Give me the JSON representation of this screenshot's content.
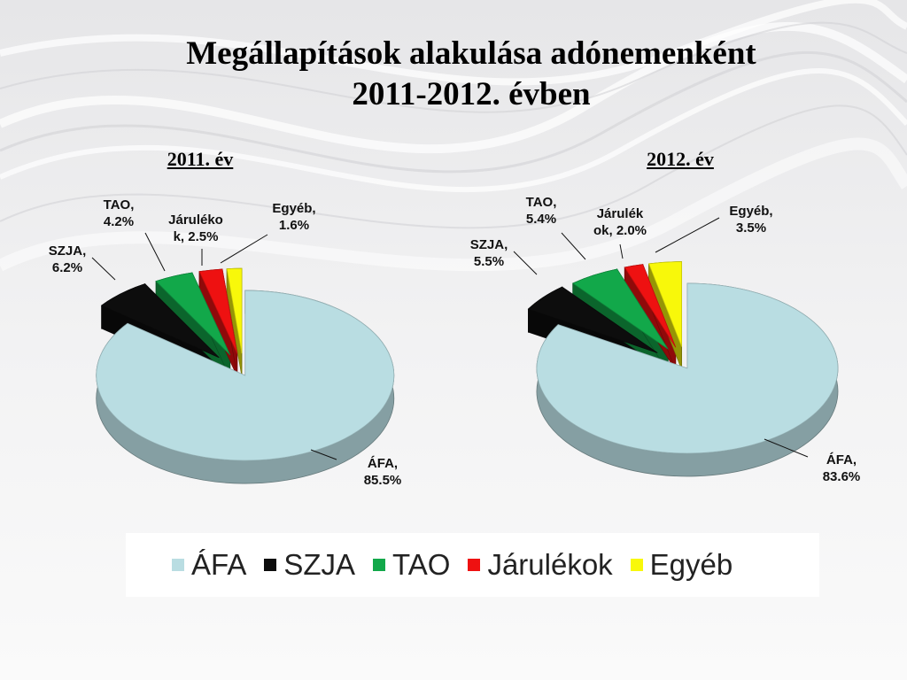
{
  "slide": {
    "title_line1": "Megállapítások alakulása adónemenként",
    "title_line2": "2011-2012. évben"
  },
  "colors": {
    "ÁFA": "#b9dde2",
    "SZJA": "#0d0d0d",
    "TAO": "#12a84a",
    "Járulékok": "#ee1111",
    "Egyéb": "#f8f80a"
  },
  "legend": [
    "ÁFA",
    "SZJA",
    "TAO",
    "Járulékok",
    "Egyéb"
  ],
  "chart_data": [
    {
      "type": "pie",
      "title": "2011. év",
      "style": "3d-exploded",
      "categories": [
        "ÁFA",
        "SZJA",
        "TAO",
        "Járulékok",
        "Egyéb"
      ],
      "values": [
        85.5,
        6.2,
        4.2,
        2.5,
        1.6
      ],
      "unit": "%",
      "data_labels": [
        [
          "ÁFA,",
          "85.5%"
        ],
        [
          "SZJA,",
          "6.2%"
        ],
        [
          "TAO,",
          "4.2%"
        ],
        [
          "Járuléko",
          "k, 2.5%"
        ],
        [
          "Egyéb,",
          "1.6%"
        ]
      ]
    },
    {
      "type": "pie",
      "title": "2012. év",
      "style": "3d-exploded",
      "categories": [
        "ÁFA",
        "SZJA",
        "TAO",
        "Járulékok",
        "Egyéb"
      ],
      "values": [
        83.6,
        5.5,
        5.4,
        2.0,
        3.5
      ],
      "unit": "%",
      "data_labels": [
        [
          "ÁFA,",
          "83.6%"
        ],
        [
          "SZJA,",
          "5.5%"
        ],
        [
          "TAO,",
          "5.4%"
        ],
        [
          "Járulék",
          "ok, 2.0%"
        ],
        [
          "Egyéb,",
          "3.5%"
        ]
      ]
    }
  ]
}
